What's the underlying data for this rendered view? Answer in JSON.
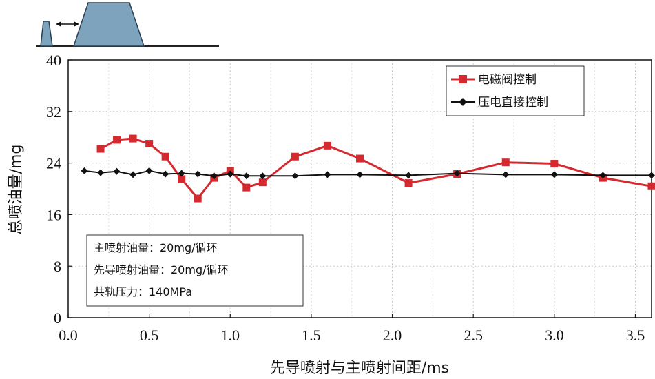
{
  "chart_data": {
    "type": "line",
    "xlabel": "先导喷射与主喷射间距/ms",
    "ylabel": "总喷油量/mg",
    "xlim": [
      0,
      3.6
    ],
    "ylim": [
      0,
      40
    ],
    "x_ticks": [
      "0.0",
      "0.5",
      "1.0",
      "1.5",
      "2.0",
      "2.5",
      "3.0",
      "3.5"
    ],
    "y_ticks": [
      "0",
      "8",
      "16",
      "24",
      "32",
      "40"
    ],
    "grid": true,
    "legend_position": "top-right",
    "series": [
      {
        "name": "电磁阀控制",
        "color": "#d42a2f",
        "marker": "square",
        "x": [
          0.2,
          0.3,
          0.4,
          0.5,
          0.6,
          0.7,
          0.8,
          0.9,
          1.0,
          1.1,
          1.2,
          1.4,
          1.6,
          1.8,
          2.1,
          2.4,
          2.7,
          3.0,
          3.3,
          3.6
        ],
        "y": [
          26.2,
          27.6,
          27.8,
          27.0,
          25.0,
          21.5,
          18.5,
          21.7,
          22.8,
          20.2,
          21.0,
          25.0,
          26.7,
          24.7,
          20.9,
          22.3,
          24.1,
          23.9,
          21.7,
          20.4
        ]
      },
      {
        "name": "压电直接控制",
        "color": "#111111",
        "marker": "diamond",
        "x": [
          0.1,
          0.2,
          0.3,
          0.4,
          0.5,
          0.6,
          0.7,
          0.8,
          0.9,
          1.0,
          1.1,
          1.2,
          1.4,
          1.6,
          1.8,
          2.1,
          2.4,
          2.7,
          3.0,
          3.3,
          3.6
        ],
        "y": [
          22.8,
          22.5,
          22.7,
          22.2,
          22.8,
          22.3,
          22.4,
          22.3,
          22.0,
          22.3,
          22.0,
          22.0,
          22.0,
          22.2,
          22.2,
          22.1,
          22.4,
          22.2,
          22.2,
          22.1,
          22.1
        ]
      }
    ],
    "annotation_lines": [
      "主喷射油量：20mg/循环",
      "先导喷射油量：20mg/循环",
      "共轨压力：140MPa"
    ]
  },
  "colors": {
    "inset_fill": "#7ea3bd",
    "inset_stroke": "#2a3f52"
  },
  "icons": {
    "inset": "injection-pulse-diagram-icon"
  }
}
